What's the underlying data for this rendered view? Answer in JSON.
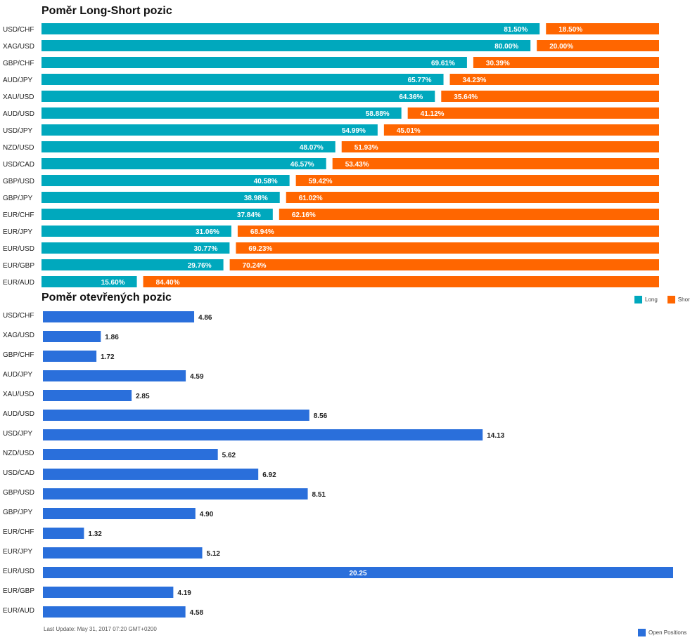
{
  "chart_data": [
    {
      "type": "bar",
      "stacked": true,
      "orientation": "horizontal",
      "title": "Poměr Long-Short pozic",
      "categories": [
        "USD/CHF",
        "XAG/USD",
        "GBP/CHF",
        "AUD/JPY",
        "XAU/USD",
        "AUD/USD",
        "USD/JPY",
        "NZD/USD",
        "USD/CAD",
        "GBP/USD",
        "GBP/JPY",
        "EUR/CHF",
        "EUR/JPY",
        "EUR/USD",
        "EUR/GBP",
        "EUR/AUD"
      ],
      "series": [
        {
          "name": "Long",
          "color": "#00a8bd",
          "values": [
            81.5,
            80.0,
            69.61,
            65.77,
            64.36,
            58.88,
            54.99,
            48.07,
            46.57,
            40.58,
            38.98,
            37.84,
            31.06,
            30.77,
            29.76,
            15.6
          ],
          "labels": [
            "81.50%",
            "80.00%",
            "69.61%",
            "65.77%",
            "64.36%",
            "58.88%",
            "54.99%",
            "48.07%",
            "46.57%",
            "40.58%",
            "38.98%",
            "37.84%",
            "31.06%",
            "30.77%",
            "29.76%",
            "15.60%"
          ]
        },
        {
          "name": "Short",
          "color": "#ff6600",
          "values": [
            18.5,
            20.0,
            30.39,
            34.23,
            35.64,
            41.12,
            45.01,
            51.93,
            53.43,
            59.42,
            61.02,
            62.16,
            68.94,
            69.23,
            70.24,
            84.4
          ],
          "labels": [
            "18.50%",
            "20.00%",
            "30.39%",
            "34.23%",
            "35.64%",
            "41.12%",
            "45.01%",
            "51.93%",
            "53.43%",
            "59.42%",
            "61.02%",
            "62.16%",
            "68.94%",
            "69.23%",
            "70.24%",
            "84.40%"
          ]
        }
      ],
      "xlim": [
        0,
        100
      ],
      "grid": false,
      "legend": "bottom-right"
    },
    {
      "type": "bar",
      "orientation": "horizontal",
      "title": "Poměr otevřených pozic",
      "categories": [
        "USD/CHF",
        "XAG/USD",
        "GBP/CHF",
        "AUD/JPY",
        "XAU/USD",
        "AUD/USD",
        "USD/JPY",
        "NZD/USD",
        "USD/CAD",
        "GBP/USD",
        "GBP/JPY",
        "EUR/CHF",
        "EUR/JPY",
        "EUR/USD",
        "EUR/GBP",
        "EUR/AUD"
      ],
      "series": [
        {
          "name": "Open Positions",
          "color": "#2a6fdb",
          "values": [
            4.86,
            1.86,
            1.72,
            4.59,
            2.85,
            8.56,
            14.13,
            5.62,
            6.92,
            8.51,
            4.9,
            1.32,
            5.12,
            20.25,
            4.19,
            4.58
          ],
          "labels": [
            "4.86",
            "1.86",
            "1.72",
            "4.59",
            "2.85",
            "8.56",
            "14.13",
            "5.62",
            "6.92",
            "8.51",
            "4.90",
            "1.32",
            "5.12",
            "20.25",
            "4.19",
            "4.58"
          ]
        }
      ],
      "xlim": [
        0,
        20.25
      ],
      "grid": false,
      "legend": "bottom-right"
    }
  ],
  "footer": "Last Update: May 31, 2017 07:20 GMT+0200"
}
